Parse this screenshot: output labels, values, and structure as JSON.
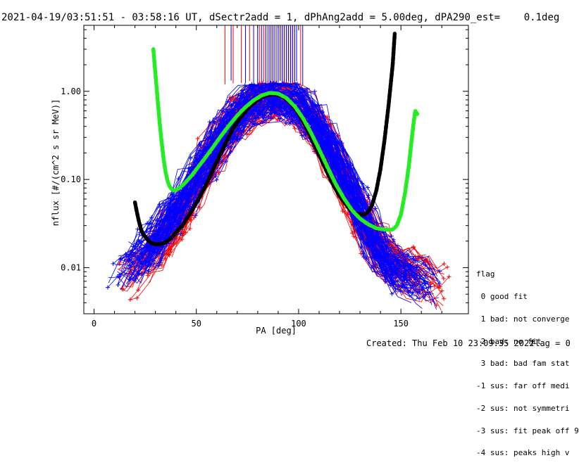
{
  "header": {
    "title": "2021-04-19/03:51:51 - 03:58:16 UT, dSectr2add = 1, dPhAng2add = 5.00deg, dPA290_est=    0.1deg"
  },
  "footer": {
    "created": "Created: Thu Feb 10 23:09:35 2022",
    "flag": "flag = 0"
  },
  "legend": {
    "title": "flag",
    "items": [
      " 0 good fit",
      " 1 bad: not converge",
      " 2 bad: no fit",
      " 3 bad: bad fam stat",
      "-1 sus: far off medi",
      "-2 sus: not symmetri",
      "-3 sus: fit peak off 9",
      "-4 sus: peaks high v"
    ]
  },
  "colors": {
    "red_series": "#ff0000",
    "blue_series": "#0000ff",
    "green_fit": "#22ee22",
    "black_fit": "#000000"
  },
  "chart_data": {
    "type": "line",
    "title": "2021-04-19/03:51:51 - 03:58:16 UT, dSectr2add = 1, dPhAng2add = 5.00deg, dPA290_est=    0.1deg",
    "xlabel": "PA [deg]",
    "ylabel": "nflux [#/(cm^2 s sr MeV)]",
    "xlim": [
      -5,
      183
    ],
    "ylim": [
      0.003,
      5.6
    ],
    "yscale": "log",
    "x_ticks": [
      0,
      50,
      100,
      150
    ],
    "x_tick_labels": [
      "0",
      "50",
      "100",
      "150"
    ],
    "y_ticks": [
      0.01,
      0.1,
      1.0
    ],
    "y_tick_labels": [
      "0.01",
      "0.10",
      "1.00"
    ],
    "series": [
      {
        "name": "green fit curve",
        "color": "#22ee22",
        "x": [
          29,
          30,
          31,
          32,
          33,
          34,
          35,
          36,
          37,
          38,
          39,
          40,
          42,
          44,
          46,
          48,
          50,
          54,
          58,
          62,
          66,
          70,
          74,
          78,
          82,
          86,
          90,
          94,
          98,
          102,
          106,
          110,
          114,
          118,
          122,
          126,
          130,
          134,
          138,
          142,
          146,
          148,
          150,
          152,
          154,
          155,
          156,
          157,
          158
        ],
        "values": [
          3.0,
          1.6,
          0.85,
          0.45,
          0.27,
          0.17,
          0.12,
          0.095,
          0.083,
          0.077,
          0.075,
          0.076,
          0.081,
          0.089,
          0.1,
          0.113,
          0.13,
          0.172,
          0.23,
          0.31,
          0.41,
          0.53,
          0.66,
          0.79,
          0.9,
          0.96,
          0.94,
          0.84,
          0.68,
          0.5,
          0.34,
          0.22,
          0.14,
          0.09,
          0.062,
          0.045,
          0.036,
          0.031,
          0.028,
          0.027,
          0.027,
          0.03,
          0.04,
          0.07,
          0.15,
          0.25,
          0.4,
          0.6,
          0.55
        ]
      },
      {
        "name": "black fit curve",
        "color": "#000000",
        "x": [
          20,
          21,
          22,
          23,
          24,
          26,
          28,
          30,
          32,
          34,
          36,
          38,
          40,
          42,
          44,
          46,
          48,
          52,
          56,
          60,
          64,
          68,
          72,
          76,
          80,
          84,
          88,
          92,
          96,
          100,
          104,
          108,
          112,
          116,
          120,
          124,
          128,
          132,
          134,
          136,
          138,
          140,
          142,
          144,
          146,
          147
        ],
        "values": [
          0.055,
          0.042,
          0.033,
          0.027,
          0.024,
          0.021,
          0.019,
          0.0185,
          0.0185,
          0.019,
          0.02,
          0.022,
          0.025,
          0.028,
          0.032,
          0.038,
          0.045,
          0.065,
          0.1,
          0.16,
          0.25,
          0.38,
          0.52,
          0.67,
          0.8,
          0.9,
          0.93,
          0.88,
          0.74,
          0.56,
          0.38,
          0.24,
          0.15,
          0.095,
          0.065,
          0.049,
          0.041,
          0.04,
          0.043,
          0.052,
          0.075,
          0.13,
          0.28,
          0.7,
          2.0,
          4.5
        ]
      },
      {
        "name": "blue measured profiles",
        "color": "#0000ff",
        "x": [
          10,
          15,
          20,
          25,
          30,
          35,
          40,
          45,
          50,
          55,
          60,
          65,
          70,
          75,
          80,
          85,
          90,
          95,
          100,
          105,
          110,
          115,
          120,
          125,
          130,
          135,
          140,
          145,
          150,
          155,
          160,
          165
        ],
        "values": [
          0.008,
          0.01,
          0.012,
          0.015,
          0.02,
          0.03,
          0.045,
          0.07,
          0.11,
          0.17,
          0.26,
          0.38,
          0.52,
          0.66,
          0.78,
          0.86,
          0.88,
          0.82,
          0.7,
          0.54,
          0.38,
          0.24,
          0.14,
          0.08,
          0.045,
          0.025,
          0.015,
          0.011,
          0.009,
          0.008,
          0.007,
          0.006
        ]
      },
      {
        "name": "red measured profiles",
        "color": "#ff0000",
        "x": [
          15,
          20,
          25,
          30,
          35,
          40,
          45,
          50,
          55,
          60,
          65,
          70,
          75,
          80,
          85,
          90,
          95,
          100,
          105,
          110,
          115,
          120,
          125,
          130,
          135,
          140,
          145,
          150,
          155,
          160,
          165,
          170
        ],
        "values": [
          0.007,
          0.009,
          0.011,
          0.015,
          0.022,
          0.034,
          0.055,
          0.09,
          0.15,
          0.24,
          0.36,
          0.5,
          0.64,
          0.76,
          0.85,
          0.87,
          0.8,
          0.66,
          0.5,
          0.34,
          0.21,
          0.13,
          0.075,
          0.042,
          0.025,
          0.016,
          0.012,
          0.01,
          0.009,
          0.008,
          0.007,
          0.006
        ]
      }
    ],
    "peak_markers": {
      "red_x": [
        64,
        68,
        72,
        76,
        80,
        81,
        83,
        84,
        86,
        87,
        88,
        89,
        90,
        91,
        92,
        93,
        94,
        95,
        96,
        97,
        98,
        101
      ],
      "blue_x": [
        67,
        74,
        78,
        80,
        82,
        84,
        85,
        86,
        87,
        88,
        89,
        90,
        91,
        92,
        93,
        94,
        95,
        96,
        97,
        98,
        99,
        102
      ]
    }
  }
}
